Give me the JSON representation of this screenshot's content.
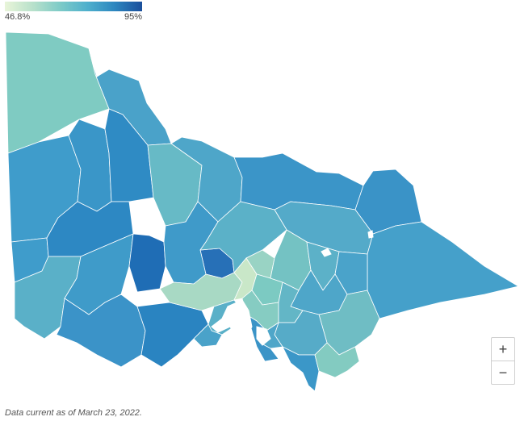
{
  "legend": {
    "min_label": "46.8%",
    "max_label": "95%"
  },
  "map": {
    "palette": {
      "water": "#ffffff",
      "ocean": "#ffffff"
    },
    "regions": [
      {
        "id": "far-northwest",
        "fill": "#7fcbc2"
      },
      {
        "id": "north-mallee",
        "fill": "#4aa2c9"
      },
      {
        "id": "west-border-north",
        "fill": "#3f9ccb"
      },
      {
        "id": "west-border-south",
        "fill": "#3f9ccb"
      },
      {
        "id": "wimmera-north",
        "fill": "#3a96c8"
      },
      {
        "id": "wimmera-central",
        "fill": "#2f8bc4"
      },
      {
        "id": "loddon-north",
        "fill": "#2d88c3"
      },
      {
        "id": "central-north",
        "fill": "#67bac6"
      },
      {
        "id": "goulburn",
        "fill": "#4ea6c9"
      },
      {
        "id": "border-northeast",
        "fill": "#3b95c8"
      },
      {
        "id": "northeast-alpine",
        "fill": "#3a93c7"
      },
      {
        "id": "hume",
        "fill": "#54aac9"
      },
      {
        "id": "east-gippsland",
        "fill": "#45a0ca"
      },
      {
        "id": "southwest-coast",
        "fill": "#5ab0c8"
      },
      {
        "id": "glenelg",
        "fill": "#3f9bc9"
      },
      {
        "id": "corangamite",
        "fill": "#3b93c8"
      },
      {
        "id": "surf-coast",
        "fill": "#2a84c1"
      },
      {
        "id": "ballarat",
        "fill": "#1f6db5"
      },
      {
        "id": "bendigo",
        "fill": "#2770b7"
      },
      {
        "id": "pyrenees",
        "fill": "#3f9ac9"
      },
      {
        "id": "macedon",
        "fill": "#5bb1c8"
      },
      {
        "id": "metro-west",
        "fill": "#a8d9c4"
      },
      {
        "id": "metro-central",
        "fill": "#c9e7c8"
      },
      {
        "id": "metro-north",
        "fill": "#99d3c4"
      },
      {
        "id": "metro-east",
        "fill": "#7ccac2"
      },
      {
        "id": "metro-south",
        "fill": "#86ccc2"
      },
      {
        "id": "yarra-ranges",
        "fill": "#74c2c3"
      },
      {
        "id": "murrindindi",
        "fill": "#5cb1c8"
      },
      {
        "id": "mansfield",
        "fill": "#4aa3ca"
      },
      {
        "id": "baw-baw",
        "fill": "#4ea6c9"
      },
      {
        "id": "latrobe",
        "fill": "#63b6c6"
      },
      {
        "id": "wellington",
        "fill": "#6fbdc4"
      },
      {
        "id": "south-gippsland",
        "fill": "#56abc8"
      },
      {
        "id": "phillip-island",
        "fill": "#4fa6c9"
      },
      {
        "id": "mornington",
        "fill": "#3b94c7"
      },
      {
        "id": "bellarine",
        "fill": "#5ab0c8"
      },
      {
        "id": "geelong",
        "fill": "#4aa2c9"
      },
      {
        "id": "wilsons-prom",
        "fill": "#3b97c8"
      },
      {
        "id": "coastal-east",
        "fill": "#83cbc1"
      }
    ]
  },
  "zoom": {
    "in_label": "+",
    "out_label": "−"
  },
  "footnote": "Data current as of March 23, 2022."
}
